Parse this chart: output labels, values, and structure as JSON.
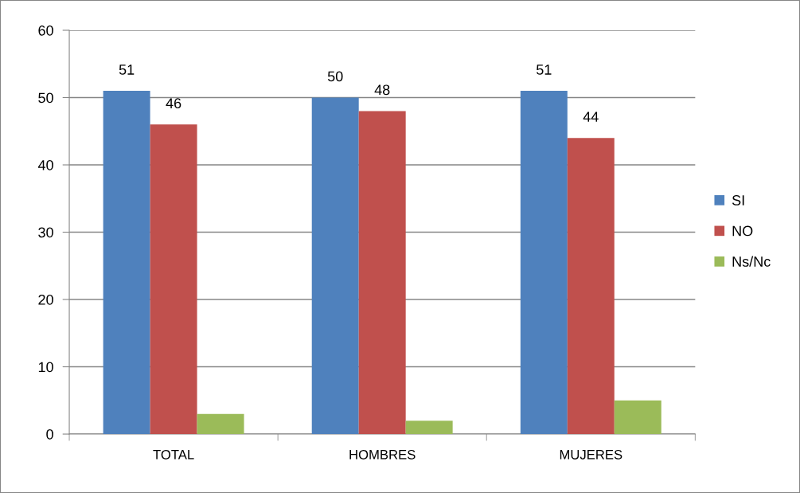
{
  "chart_data": {
    "type": "bar",
    "categories": [
      "TOTAL",
      "HOMBRES",
      "MUJERES"
    ],
    "series": [
      {
        "name": "SI",
        "color": "#4f81bd",
        "values": [
          51,
          50,
          51
        ],
        "value_labels": [
          "51",
          "50",
          "51"
        ]
      },
      {
        "name": "NO",
        "color": "#c0504d",
        "values": [
          46,
          48,
          44
        ],
        "value_labels": [
          "46",
          "48",
          "44"
        ]
      },
      {
        "name": "Ns/Nc",
        "color": "#9bbb59",
        "values": [
          3,
          2,
          5
        ]
      }
    ],
    "ylim": [
      0,
      60
    ],
    "yticks": [
      0,
      10,
      20,
      30,
      40,
      50,
      60
    ],
    "grid": "y",
    "legend": "right"
  }
}
